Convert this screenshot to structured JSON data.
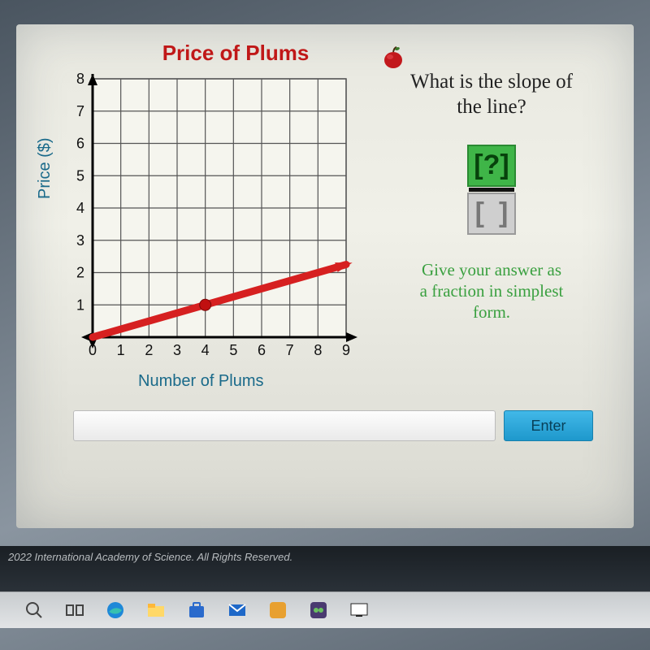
{
  "chart": {
    "title": "Price of Plums",
    "type": "line",
    "xlabel": "Number of Plums",
    "ylabel": "Price ($)",
    "xlim": [
      0,
      9
    ],
    "ylim": [
      0,
      8
    ],
    "xtick_step": 1,
    "ytick_step": 1,
    "xticks": [
      0,
      1,
      2,
      3,
      4,
      5,
      6,
      7,
      8,
      9
    ],
    "yticks": [
      1,
      2,
      3,
      4,
      5,
      6,
      7,
      8
    ],
    "line_points": [
      [
        0,
        0
      ],
      [
        9,
        2.25
      ]
    ],
    "marked_point": [
      4,
      1
    ],
    "line_color": "#d62020",
    "point_color": "#c01010",
    "grid_color": "#555555",
    "background_color": "#f5f5ee",
    "axis_color": "#000000",
    "title_color": "#c01818",
    "label_color": "#1a6a8a",
    "title_fontsize": 26,
    "label_fontsize": 20,
    "tick_fontsize": 18,
    "line_width": 9,
    "point_radius": 7,
    "arrow_size": 14
  },
  "question": {
    "text_line1": "What is the slope of",
    "text_line2": "the line?",
    "numerator_placeholder": "?",
    "numerator_bg": "#3fb548",
    "numerator_fg": "#07420c",
    "denominator_bg": "#cfcfcf",
    "hint_line1": "Give your answer as",
    "hint_line2": "a fraction in simplest",
    "hint_line3": "form.",
    "hint_color": "#3aa040"
  },
  "input": {
    "placeholder": "",
    "enter_label": "Enter",
    "enter_bg": "#2aa8dc"
  },
  "footer": {
    "copyright": "2022 International Academy of Science. All Rights Reserved."
  },
  "taskbar": {
    "icons": [
      "search",
      "task-view",
      "edge",
      "file-explorer",
      "store",
      "mail",
      "app1",
      "app2",
      "app3"
    ]
  }
}
